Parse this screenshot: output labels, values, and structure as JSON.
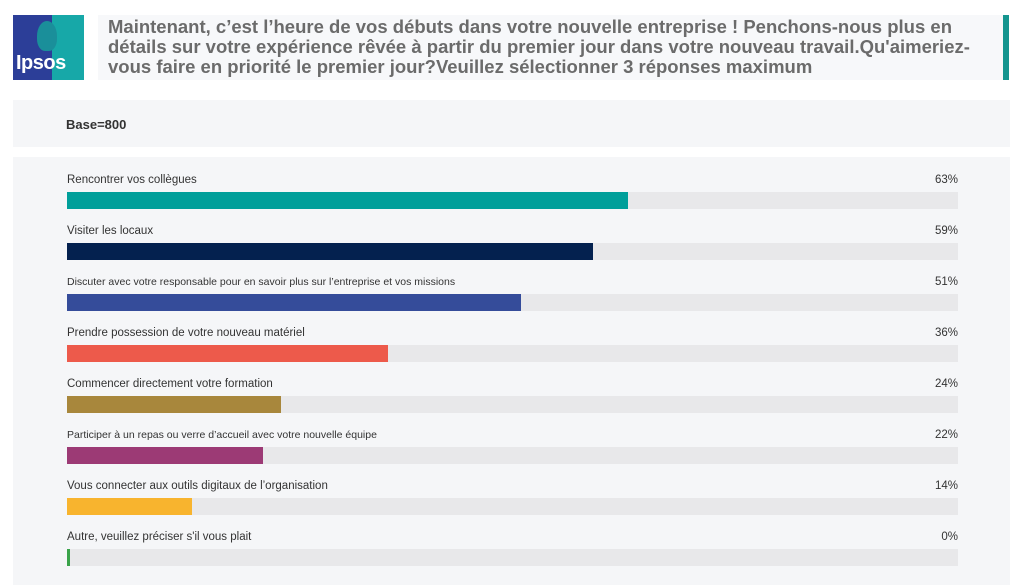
{
  "logo": {
    "text": "Ipsos"
  },
  "header": {
    "question": "Maintenant, c’est l’heure de vos débuts dans votre nouvelle entreprise ! Penchons-nous plus en détails sur votre expérience rêvée à partir du premier jour dans votre nouveau travail.Qu'aimeriez-vous faire en priorité le premier jour?Veuillez sélectionner 3 réponses maximum"
  },
  "base": {
    "label": "Base=800"
  },
  "chart_data": {
    "type": "bar",
    "orientation": "horizontal",
    "xlim": [
      0,
      100
    ],
    "unit": "%",
    "categories": [
      "Rencontrer vos collègues",
      "Visiter les locaux",
      "Discuter avec votre responsable pour en savoir plus sur l’entreprise et vos missions",
      "Prendre possession de votre nouveau matériel",
      "Commencer directement votre formation",
      "Participer à un repas ou verre d’accueil avec votre nouvelle équipe",
      "Vous connecter aux outils digitaux de l’organisation",
      "Autre, veuillez préciser s'il vous plait"
    ],
    "values": [
      63,
      59,
      51,
      36,
      24,
      22,
      14,
      0
    ],
    "value_labels": [
      "63%",
      "59%",
      "51%",
      "36%",
      "24%",
      "22%",
      "14%",
      "0%"
    ],
    "colors": [
      "#009f9a",
      "#04214f",
      "#354c9a",
      "#ed5a4b",
      "#a8873c",
      "#9c3a75",
      "#f8b42e",
      "#3aa34a"
    ],
    "track_color": "#e8e8ea"
  }
}
